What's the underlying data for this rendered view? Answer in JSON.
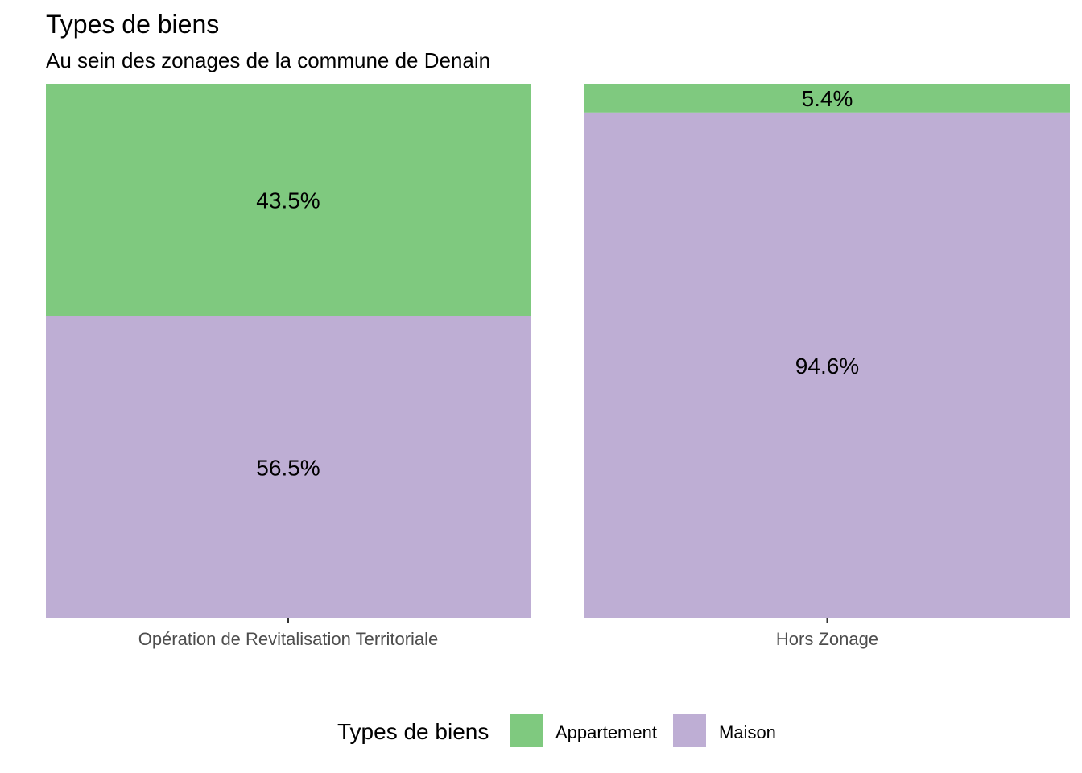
{
  "chart_data": {
    "type": "bar",
    "stacked": true,
    "percent_stacked": true,
    "title": "Types de biens",
    "subtitle": "Au sein des zonages de la commune de Denain",
    "xlabel": "",
    "ylabel": "",
    "ylim": [
      0,
      100
    ],
    "grid": false,
    "categories": [
      "Opération de Revitalisation Territoriale",
      "Hors Zonage"
    ],
    "series": [
      {
        "name": "Appartement",
        "values": [
          43.5,
          5.4
        ],
        "labels": [
          "43.5%",
          "5.4%"
        ],
        "color": "#7fc97f"
      },
      {
        "name": "Maison",
        "values": [
          56.5,
          94.6
        ],
        "labels": [
          "56.5%",
          "94.6%"
        ],
        "color": "#beaed4"
      }
    ],
    "legend": {
      "title": "Types de biens",
      "position": "bottom",
      "entries": [
        "Appartement",
        "Maison"
      ]
    }
  }
}
